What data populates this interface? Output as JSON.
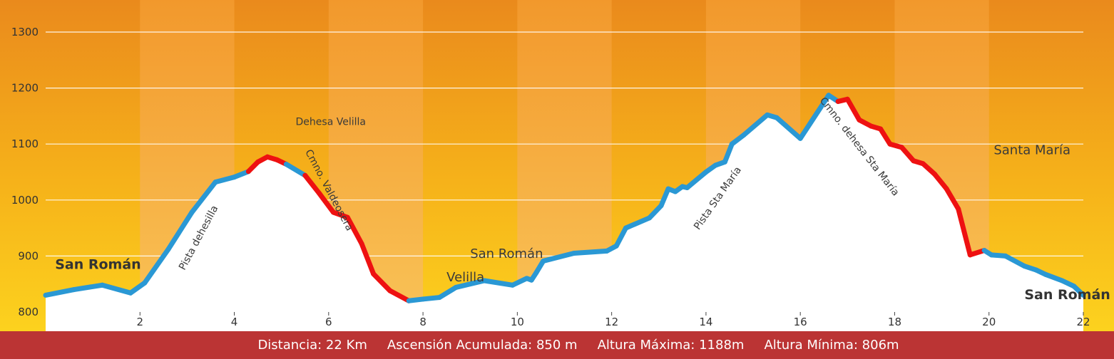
{
  "chart_data": {
    "type": "area",
    "x_ticks": [
      2,
      4,
      6,
      8,
      10,
      12,
      14,
      16,
      18,
      20,
      22
    ],
    "y_ticks": [
      800,
      900,
      1000,
      1100,
      1200,
      1300
    ],
    "xlim": [
      0,
      22
    ],
    "ylim": [
      800,
      1300
    ],
    "grid": "horizontal",
    "profile": {
      "x": [
        0,
        0.6,
        1.2,
        1.8,
        2.1,
        2.6,
        3.1,
        3.6,
        4.0,
        4.3,
        4.5,
        4.7,
        4.9,
        5.1,
        5.5,
        5.8,
        6.1,
        6.4,
        6.7,
        6.95,
        7.3,
        7.7,
        8.0,
        8.35,
        8.7,
        9.3,
        9.9,
        10.2,
        10.3,
        10.4,
        10.55,
        11.2,
        11.9,
        12.1,
        12.3,
        12.8,
        13.05,
        13.2,
        13.35,
        13.5,
        13.6,
        14.0,
        14.2,
        14.4,
        14.55,
        14.8,
        15.3,
        15.5,
        16.0,
        16.6,
        16.8,
        17.0,
        17.25,
        17.5,
        17.7,
        17.9,
        18.15,
        18.4,
        18.6,
        18.85,
        19.1,
        19.35,
        19.6,
        19.9,
        20.05,
        20.35,
        20.75,
        21.0,
        21.2,
        21.55,
        21.8,
        22.0
      ],
      "y": [
        830,
        840,
        848,
        834,
        852,
        912,
        978,
        1032,
        1041,
        1051,
        1068,
        1077,
        1072,
        1064,
        1044,
        1012,
        978,
        969,
        922,
        868,
        838,
        820,
        823,
        826,
        844,
        856,
        848,
        860,
        857,
        870,
        891,
        905,
        909,
        918,
        950,
        968,
        990,
        1020,
        1015,
        1024,
        1022,
        1050,
        1062,
        1068,
        1100,
        1116,
        1152,
        1147,
        1110,
        1187,
        1176,
        1180,
        1143,
        1132,
        1127,
        1100,
        1094,
        1070,
        1065,
        1046,
        1020,
        984,
        902,
        910,
        902,
        900,
        882,
        875,
        867,
        856,
        846,
        830
      ],
      "red_segments": [
        [
          4.3,
          5.1
        ],
        [
          5.5,
          7.7
        ],
        [
          16.8,
          19.9
        ]
      ],
      "colors": {
        "ascent": "#2a98d4",
        "descent": "#ee1111"
      }
    },
    "annotations": [
      {
        "text": "San Román",
        "x": 0.2,
        "y": 877,
        "bold": true,
        "size": "large"
      },
      {
        "text": "Pista dehesilla",
        "x": 3.3,
        "y": 930,
        "rotate": -62
      },
      {
        "text": "Dehesa Velilla",
        "x": 5.3,
        "y": 1134,
        "size": "small"
      },
      {
        "text": "Cmno. Valdeosera",
        "x": 5.95,
        "y": 1015,
        "rotate": 62
      },
      {
        "text": "Velilla",
        "x": 8.5,
        "y": 855,
        "size": "medium"
      },
      {
        "text": "San Román",
        "x": 9.0,
        "y": 897,
        "size": "medium"
      },
      {
        "text": "Pista Sta María",
        "x": 14.3,
        "y": 1000,
        "rotate": -55
      },
      {
        "text": "Cmno. dehesa Sta María",
        "x": 17.2,
        "y": 1092,
        "rotate": 52
      },
      {
        "text": "Santa María",
        "x": 20.1,
        "y": 1082,
        "size": "medium"
      },
      {
        "text": "San Román",
        "x": 20.75,
        "y": 823,
        "bold": true,
        "size": "large"
      }
    ]
  },
  "background": {
    "stripe_colors": [
      "#ef9120",
      "#f5b334"
    ]
  },
  "footer": {
    "distance": "Distancia: 22 Km",
    "ascent": "Ascensión Acumulada: 850 m",
    "max": "Altura Máxima: 1188m",
    "min": "Altura Mínima: 806m"
  }
}
